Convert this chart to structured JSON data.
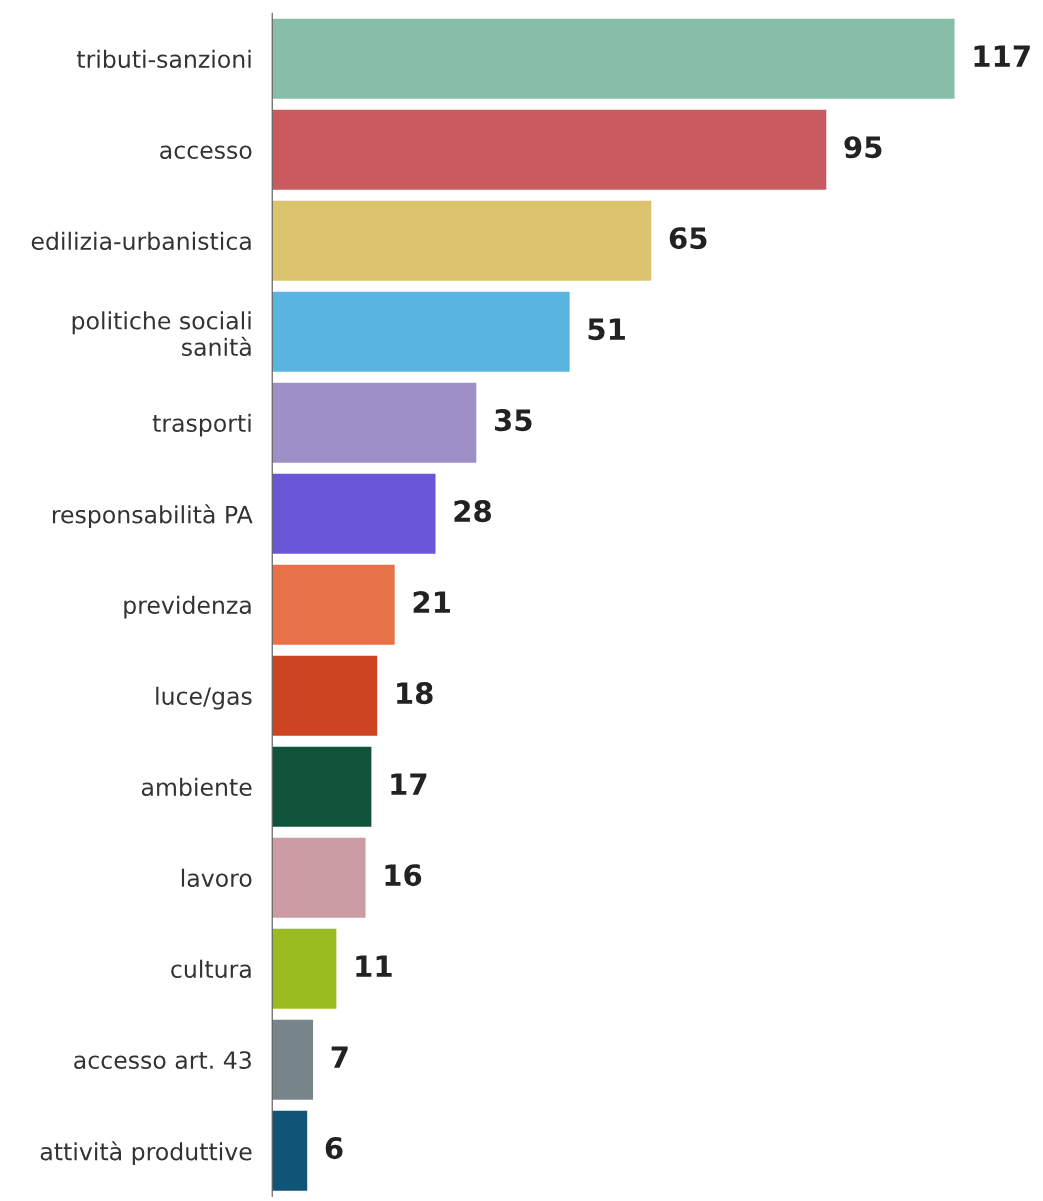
{
  "chart_data": {
    "type": "bar",
    "orientation": "horizontal",
    "data_labels": true,
    "tick_labels": "y",
    "grid": false,
    "legend": false,
    "categories": [
      "tributi-sanzioni",
      "accesso",
      "edilizia-urbanistica",
      "politiche sociali\nsanità",
      "trasporti",
      "responsabilità PA",
      "previdenza",
      "luce/gas",
      "ambiente",
      "lavoro",
      "cultura",
      "accesso art. 43",
      "attività produttive"
    ],
    "values": [
      117,
      95,
      65,
      51,
      35,
      28,
      21,
      18,
      17,
      16,
      11,
      7,
      6
    ],
    "colors": [
      "#86bea8",
      "#c95a60",
      "#dcc46f",
      "#5ab4e0",
      "#9e90c6",
      "#6858d8",
      "#e87248",
      "#cc4420",
      "#0f5438",
      "#cc9ca4",
      "#98bc20",
      "#78858a",
      "#105478"
    ]
  }
}
